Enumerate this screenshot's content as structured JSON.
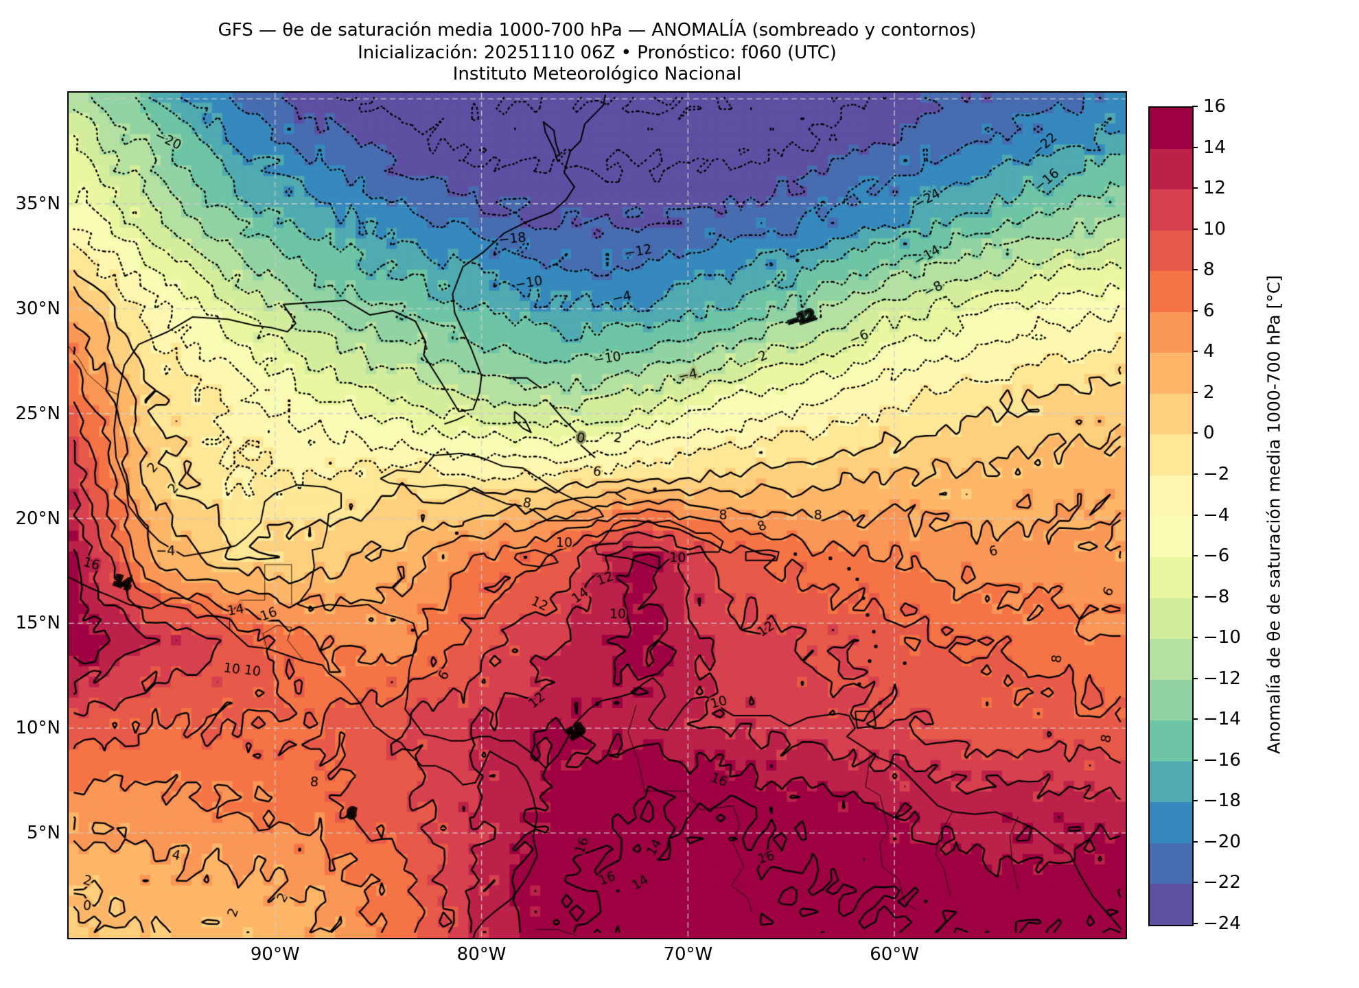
{
  "title": {
    "line1": "GFS — θe de saturación media 1000-700 hPa — ANOMALÍA (sombreado y contornos)",
    "line2": "Inicialización: 20251110 06Z   •   Pronóstico: f060 (UTC)",
    "line3": "Instituto Meteorológico Nacional"
  },
  "axes": {
    "y_ticks": [
      {
        "label": "35°N",
        "lat": 35
      },
      {
        "label": "30°N",
        "lat": 30
      },
      {
        "label": "25°N",
        "lat": 25
      },
      {
        "label": "20°N",
        "lat": 20
      },
      {
        "label": "15°N",
        "lat": 15
      },
      {
        "label": "10°N",
        "lat": 10
      },
      {
        "label": "5°N",
        "lat": 5
      }
    ],
    "x_ticks": [
      {
        "label": "90°W",
        "lon": -90
      },
      {
        "label": "80°W",
        "lon": -80
      },
      {
        "label": "70°W",
        "lon": -70
      },
      {
        "label": "60°W",
        "lon": -60
      }
    ]
  },
  "colorbar": {
    "label": "Anomalía de θe de saturación media 1000-700 hPa [°C]",
    "tick_values": [
      16,
      14,
      12,
      10,
      8,
      6,
      4,
      2,
      0,
      -2,
      -4,
      -6,
      -8,
      -10,
      -12,
      -14,
      -16,
      -18,
      -20,
      -22,
      -24
    ],
    "unit": "°C"
  },
  "chart_data": {
    "type": "heatmap",
    "variable": "Anomalía de θe de saturación media 1000-700 hPa",
    "units": "°C",
    "model": "GFS",
    "init": "20251110 06Z",
    "forecast": "f060 (UTC)",
    "extent": {
      "lon": [
        -100.0,
        -48.8
      ],
      "lat": [
        0.0,
        40.3
      ]
    },
    "levels": [
      -24,
      -22,
      -20,
      -18,
      -16,
      -14,
      -12,
      -10,
      -8,
      -6,
      -4,
      -2,
      0,
      2,
      4,
      6,
      8,
      10,
      12,
      14,
      16
    ],
    "line_levels": [
      -26,
      -24,
      -22,
      -20,
      -18,
      -16,
      -14,
      -12,
      -10,
      -8,
      -6,
      -4,
      -2,
      0,
      2,
      4,
      6,
      8,
      10,
      12,
      14,
      16
    ],
    "contour_style": {
      "negative": "dotted",
      "zero_and_positive": "solid"
    },
    "colors": [
      "#5e4fa2",
      "#476cb0",
      "#3689bd",
      "#50aab2",
      "#6dc5a5",
      "#92d3a4",
      "#b4e1a2",
      "#d3ed9c",
      "#ebf7a0",
      "#f8fcb5",
      "#fff7b1",
      "#fee796",
      "#fed07e",
      "#fdb668",
      "#fa9656",
      "#f57446",
      "#e75948",
      "#d7404e",
      "#bb2149",
      "#9e0142"
    ],
    "grid": {
      "lons": [
        -100,
        -96,
        -92,
        -88,
        -84,
        -80,
        -76,
        -72,
        -68,
        -64,
        -60,
        -56,
        -52,
        -48
      ],
      "lats": [
        42,
        38,
        34,
        30,
        26,
        22,
        18,
        14,
        10,
        6,
        2,
        -2
      ],
      "values": [
        [
          -12,
          -18,
          -23,
          -25,
          -26,
          -27,
          -27,
          -27,
          -26,
          -26,
          -25,
          -23,
          -22,
          -21
        ],
        [
          -8,
          -13,
          -18,
          -21,
          -23,
          -25,
          -25,
          -25,
          -25,
          -24,
          -22,
          -20,
          -19,
          -17
        ],
        [
          -4,
          -9,
          -14,
          -17,
          -19,
          -21,
          -22,
          -22,
          -21,
          -20,
          -18,
          -15,
          -13,
          -11
        ],
        [
          4,
          -3,
          -8,
          -12,
          -14,
          -16,
          -18,
          -18,
          -16,
          -13,
          -9,
          -7,
          -5,
          -4
        ],
        [
          8,
          0,
          -3,
          -6,
          -9,
          -11,
          -12,
          -10,
          -7,
          -5,
          -3,
          -1,
          0,
          1
        ],
        [
          12,
          1,
          -2,
          -2,
          -1,
          -2,
          -2,
          -1,
          0,
          1,
          2,
          2,
          3,
          3
        ],
        [
          15,
          4,
          0,
          1,
          3,
          6,
          9,
          15,
          9,
          7,
          6,
          5,
          5,
          4
        ],
        [
          16,
          12,
          10,
          6,
          5,
          9,
          12,
          15,
          11,
          10,
          9,
          8,
          7,
          6
        ],
        [
          9,
          8,
          8,
          8,
          10,
          12,
          14,
          13,
          12,
          11,
          10,
          9,
          9,
          8
        ],
        [
          5,
          5,
          6,
          7,
          9,
          12,
          15,
          16,
          16,
          15,
          14,
          13,
          13,
          13
        ],
        [
          2,
          3,
          3,
          4,
          7,
          12,
          16,
          17,
          17,
          16,
          16,
          15,
          15,
          16
        ],
        [
          0,
          1,
          2,
          3,
          6,
          12,
          16,
          17,
          17,
          17,
          16,
          16,
          16,
          16
        ]
      ]
    },
    "contour_labels": [
      {
        "v": "-20",
        "lon": -95.2,
        "lat": 38.0,
        "rot": 25
      },
      {
        "v": "-24",
        "lon": -58.4,
        "lat": 35.2,
        "rot": -28
      },
      {
        "v": "-22",
        "lon": -52.7,
        "lat": 37.8,
        "rot": -42
      },
      {
        "v": "-16",
        "lon": -52.6,
        "lat": 36.1,
        "rot": -40
      },
      {
        "v": "-18",
        "lon": -78.5,
        "lat": 33.3,
        "rot": -6
      },
      {
        "v": "-14",
        "lon": -58.4,
        "lat": 32.5,
        "rot": -30
      },
      {
        "v": "-12",
        "lon": -72.4,
        "lat": 32.7,
        "rot": -10
      },
      {
        "v": "-12",
        "lon": -64.5,
        "lat": 29.5,
        "rot": -18
      },
      {
        "v": "-10",
        "lon": -77.7,
        "lat": 31.2,
        "rot": -10
      },
      {
        "v": "-10",
        "lon": -73.9,
        "lat": 27.6,
        "rot": -8
      },
      {
        "v": "-8",
        "lon": -58.1,
        "lat": 30.9,
        "rot": -28
      },
      {
        "v": "-6",
        "lon": -61.7,
        "lat": 28.6,
        "rot": -22
      },
      {
        "v": "-4",
        "lon": -73.2,
        "lat": 30.5,
        "rot": -12
      },
      {
        "v": "-4",
        "lon": -70.0,
        "lat": 26.8,
        "rot": -12
      },
      {
        "v": "-2",
        "lon": -66.6,
        "lat": 27.6,
        "rot": -25
      },
      {
        "v": "-4",
        "lon": -95.3,
        "lat": 18.4,
        "rot": 0
      },
      {
        "v": "0",
        "lon": -75.2,
        "lat": 23.8,
        "rot": 10
      },
      {
        "v": "2",
        "lon": -73.4,
        "lat": 23.8,
        "rot": 10
      },
      {
        "v": "2",
        "lon": -95.9,
        "lat": 22.4,
        "rot": -50
      },
      {
        "v": "2",
        "lon": -94.9,
        "lat": 21.4,
        "rot": -50
      },
      {
        "v": "6",
        "lon": -74.4,
        "lat": 22.2,
        "rot": 8
      },
      {
        "v": "8",
        "lon": -77.8,
        "lat": 20.7,
        "rot": 12
      },
      {
        "v": "8",
        "lon": -68.3,
        "lat": 20.1,
        "rot": 0
      },
      {
        "v": "8",
        "lon": -63.7,
        "lat": 20.1,
        "rot": 0
      },
      {
        "v": "8",
        "lon": -66.4,
        "lat": 19.6,
        "rot": -25
      },
      {
        "v": "6",
        "lon": -55.2,
        "lat": 18.4,
        "rot": -15
      },
      {
        "v": "6",
        "lon": -49.6,
        "lat": 16.5,
        "rot": -65
      },
      {
        "v": "10",
        "lon": -76.0,
        "lat": 18.8,
        "rot": 0
      },
      {
        "v": "10",
        "lon": -70.5,
        "lat": 18.1,
        "rot": 0
      },
      {
        "v": "12",
        "lon": -74.0,
        "lat": 17.1,
        "rot": -20
      },
      {
        "v": "12",
        "lon": -77.2,
        "lat": 15.9,
        "rot": 25
      },
      {
        "v": "14",
        "lon": -75.2,
        "lat": 16.3,
        "rot": -35
      },
      {
        "v": "10",
        "lon": -73.4,
        "lat": 15.4,
        "rot": 0
      },
      {
        "v": "12",
        "lon": -66.2,
        "lat": 14.7,
        "rot": -35
      },
      {
        "v": "8",
        "lon": -52.1,
        "lat": 13.3,
        "rot": -85
      },
      {
        "v": "8",
        "lon": -49.7,
        "lat": 9.5,
        "rot": -80
      },
      {
        "v": "10",
        "lon": -92.1,
        "lat": 12.8,
        "rot": 8
      },
      {
        "v": "10",
        "lon": -91.1,
        "lat": 12.7,
        "rot": 8
      },
      {
        "v": "8",
        "lon": -88.1,
        "lat": 7.4,
        "rot": 5
      },
      {
        "v": "6",
        "lon": -86.3,
        "lat": 5.9,
        "rot": 10
      },
      {
        "v": "4",
        "lon": -94.8,
        "lat": 3.9,
        "rot": 12
      },
      {
        "v": "2",
        "lon": -99.1,
        "lat": 2.7,
        "rot": 15
      },
      {
        "v": "0",
        "lon": -99.1,
        "lat": 1.5,
        "rot": 5
      },
      {
        "v": "2",
        "lon": -92.0,
        "lat": 1.2,
        "rot": -70
      },
      {
        "v": "2",
        "lon": -89.6,
        "lat": 1.9,
        "rot": -60
      },
      {
        "v": "16",
        "lon": -75.4,
        "lat": 9.8,
        "rot": -30
      },
      {
        "v": "12",
        "lon": -77.3,
        "lat": 11.3,
        "rot": -40
      },
      {
        "v": "10",
        "lon": -68.5,
        "lat": 11.2,
        "rot": -15
      },
      {
        "v": "6",
        "lon": -81.8,
        "lat": 12.5,
        "rot": -60
      },
      {
        "v": "16",
        "lon": -68.5,
        "lat": 7.5,
        "rot": 20
      },
      {
        "v": "16",
        "lon": -75.1,
        "lat": 4.4,
        "rot": -70
      },
      {
        "v": "16",
        "lon": -73.9,
        "lat": 2.8,
        "rot": -20
      },
      {
        "v": "16",
        "lon": -66.2,
        "lat": 3.8,
        "rot": -15
      },
      {
        "v": "14",
        "lon": -71.6,
        "lat": 4.3,
        "rot": -60
      },
      {
        "v": "14",
        "lon": -72.3,
        "lat": 2.6,
        "rot": -30
      },
      {
        "v": "16",
        "lon": -98.9,
        "lat": 17.8,
        "rot": 15
      },
      {
        "v": "14",
        "lon": -97.4,
        "lat": 16.9,
        "rot": 20
      },
      {
        "v": "14",
        "lon": -91.9,
        "lat": 15.6,
        "rot": -10
      },
      {
        "v": "16",
        "lon": -90.3,
        "lat": 15.4,
        "rot": -20
      }
    ]
  }
}
